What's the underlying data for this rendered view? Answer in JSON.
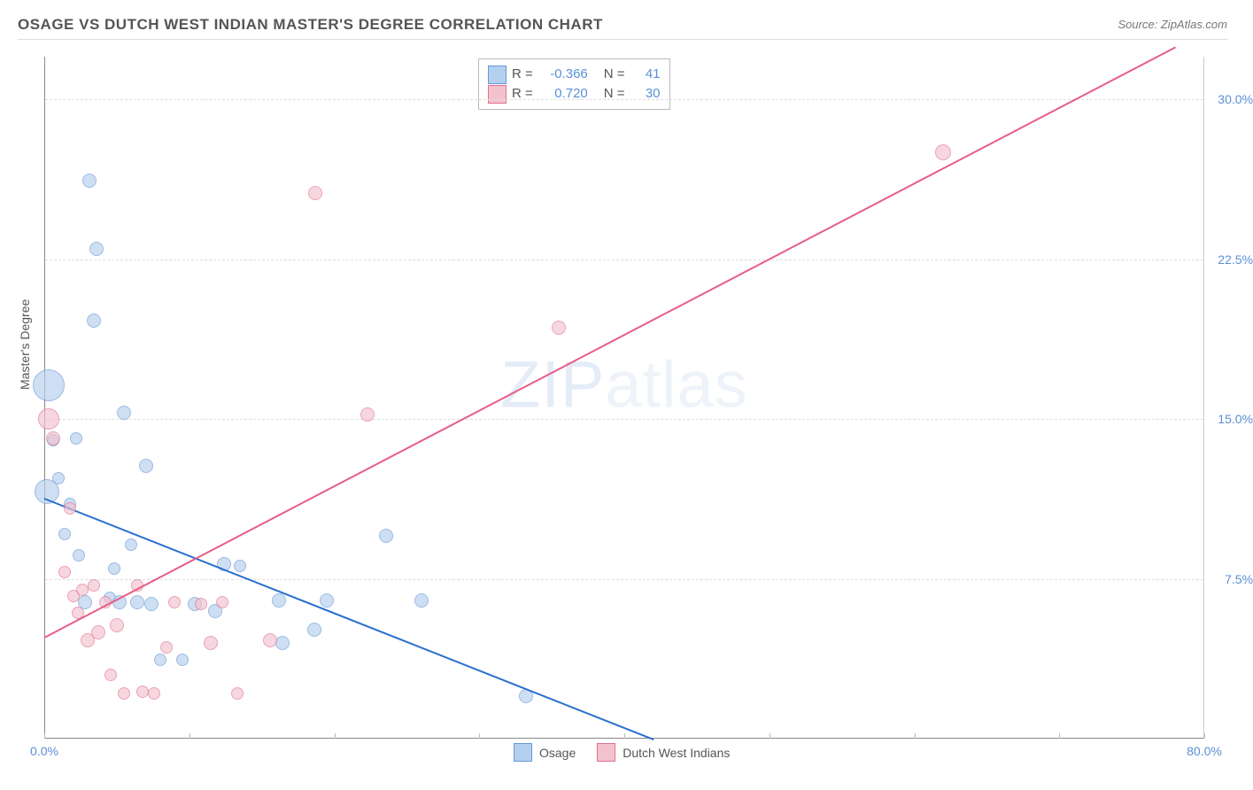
{
  "header": {
    "title": "OSAGE VS DUTCH WEST INDIAN MASTER'S DEGREE CORRELATION CHART",
    "source_label": "Source: ",
    "source_name": "ZipAtlas.com"
  },
  "watermark": {
    "part1": "ZIP",
    "part2": "atlas"
  },
  "chart": {
    "type": "scatter-with-regression",
    "background_color": "#ffffff",
    "grid_color": "#dddddd",
    "axis_color": "#888888",
    "x": {
      "min": 0.0,
      "max": 80.0,
      "label_min": "0.0%",
      "label_max": "80.0%",
      "tick_step": 10.0
    },
    "y": {
      "min": 0.0,
      "max": 32.0,
      "label": "Master's Degree",
      "ticks": [
        7.5,
        15.0,
        22.5,
        30.0
      ],
      "tick_labels": [
        "7.5%",
        "15.0%",
        "22.5%",
        "30.0%"
      ]
    },
    "series": [
      {
        "name": "Osage",
        "fill": "#b5cfee",
        "stroke": "#6798d6",
        "line_color": "#2b6fd0",
        "R": "-0.366",
        "N": "41",
        "reg": {
          "x1": 0.0,
          "y1": 11.3,
          "x2": 42.0,
          "y2": 0.0
        },
        "points": [
          {
            "x": 0.2,
            "y": 11.6,
            "r": 14
          },
          {
            "x": 0.3,
            "y": 16.6,
            "r": 18
          },
          {
            "x": 0.6,
            "y": 14.0,
            "r": 7
          },
          {
            "x": 1.0,
            "y": 12.2,
            "r": 7
          },
          {
            "x": 1.4,
            "y": 9.6,
            "r": 7
          },
          {
            "x": 1.8,
            "y": 11.0,
            "r": 7
          },
          {
            "x": 2.2,
            "y": 14.1,
            "r": 7
          },
          {
            "x": 2.4,
            "y": 8.6,
            "r": 7
          },
          {
            "x": 2.8,
            "y": 6.4,
            "r": 8
          },
          {
            "x": 3.1,
            "y": 26.2,
            "r": 8
          },
          {
            "x": 3.4,
            "y": 19.6,
            "r": 8
          },
          {
            "x": 3.6,
            "y": 23.0,
            "r": 8
          },
          {
            "x": 4.5,
            "y": 6.6,
            "r": 7
          },
          {
            "x": 4.8,
            "y": 8.0,
            "r": 7
          },
          {
            "x": 5.2,
            "y": 6.4,
            "r": 8
          },
          {
            "x": 5.5,
            "y": 15.3,
            "r": 8
          },
          {
            "x": 6.0,
            "y": 9.1,
            "r": 7
          },
          {
            "x": 6.4,
            "y": 6.4,
            "r": 8
          },
          {
            "x": 7.0,
            "y": 12.8,
            "r": 8
          },
          {
            "x": 7.4,
            "y": 6.3,
            "r": 8
          },
          {
            "x": 8.0,
            "y": 3.7,
            "r": 7
          },
          {
            "x": 9.5,
            "y": 3.7,
            "r": 7
          },
          {
            "x": 10.4,
            "y": 6.3,
            "r": 8
          },
          {
            "x": 11.8,
            "y": 6.0,
            "r": 8
          },
          {
            "x": 12.4,
            "y": 8.2,
            "r": 8
          },
          {
            "x": 13.5,
            "y": 8.1,
            "r": 7
          },
          {
            "x": 16.2,
            "y": 6.5,
            "r": 8
          },
          {
            "x": 16.4,
            "y": 4.5,
            "r": 8
          },
          {
            "x": 18.6,
            "y": 5.1,
            "r": 8
          },
          {
            "x": 19.5,
            "y": 6.5,
            "r": 8
          },
          {
            "x": 23.6,
            "y": 9.5,
            "r": 8
          },
          {
            "x": 26.0,
            "y": 6.5,
            "r": 8
          },
          {
            "x": 33.2,
            "y": 2.0,
            "r": 8
          }
        ]
      },
      {
        "name": "Dutch West Indians",
        "fill": "#f4c2cf",
        "stroke": "#e1718f",
        "line_color": "#e75d88",
        "R": "0.720",
        "N": "30",
        "reg": {
          "x1": 0.0,
          "y1": 4.8,
          "x2": 78.0,
          "y2": 32.5
        },
        "points": [
          {
            "x": 0.3,
            "y": 15.0,
            "r": 12
          },
          {
            "x": 0.6,
            "y": 14.1,
            "r": 8
          },
          {
            "x": 1.4,
            "y": 7.8,
            "r": 7
          },
          {
            "x": 1.8,
            "y": 10.8,
            "r": 7
          },
          {
            "x": 2.0,
            "y": 6.7,
            "r": 7
          },
          {
            "x": 2.3,
            "y": 5.9,
            "r": 7
          },
          {
            "x": 2.6,
            "y": 7.0,
            "r": 7
          },
          {
            "x": 3.0,
            "y": 4.6,
            "r": 8
          },
          {
            "x": 3.4,
            "y": 7.2,
            "r": 7
          },
          {
            "x": 3.7,
            "y": 5.0,
            "r": 8
          },
          {
            "x": 4.2,
            "y": 6.4,
            "r": 7
          },
          {
            "x": 4.6,
            "y": 3.0,
            "r": 7
          },
          {
            "x": 5.0,
            "y": 5.3,
            "r": 8
          },
          {
            "x": 5.5,
            "y": 2.1,
            "r": 7
          },
          {
            "x": 6.4,
            "y": 7.2,
            "r": 7
          },
          {
            "x": 6.8,
            "y": 2.2,
            "r": 7
          },
          {
            "x": 7.6,
            "y": 2.1,
            "r": 7
          },
          {
            "x": 8.4,
            "y": 4.3,
            "r": 7
          },
          {
            "x": 9.0,
            "y": 6.4,
            "r": 7
          },
          {
            "x": 10.8,
            "y": 6.3,
            "r": 7
          },
          {
            "x": 11.5,
            "y": 4.5,
            "r": 8
          },
          {
            "x": 12.3,
            "y": 6.4,
            "r": 7
          },
          {
            "x": 13.3,
            "y": 2.1,
            "r": 7
          },
          {
            "x": 15.6,
            "y": 4.6,
            "r": 8
          },
          {
            "x": 18.7,
            "y": 25.6,
            "r": 8
          },
          {
            "x": 22.3,
            "y": 15.2,
            "r": 8
          },
          {
            "x": 35.5,
            "y": 19.3,
            "r": 8
          },
          {
            "x": 62.0,
            "y": 27.5,
            "r": 9
          }
        ]
      }
    ]
  },
  "legend_bottom": [
    {
      "label": "Osage",
      "fill": "#b5cfee",
      "stroke": "#6798d6"
    },
    {
      "label": "Dutch West Indians",
      "fill": "#f4c2cf",
      "stroke": "#e1718f"
    }
  ]
}
